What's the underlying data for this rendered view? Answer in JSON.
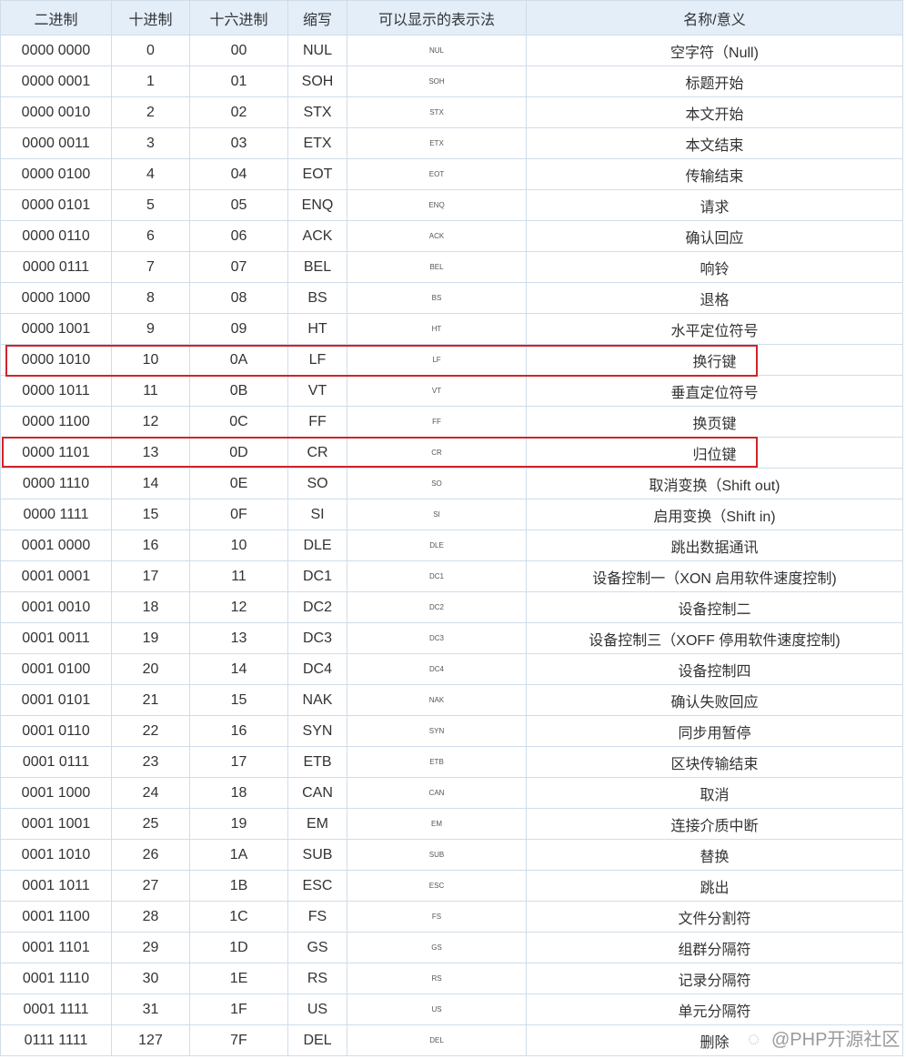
{
  "headers": [
    "二进制",
    "十进制",
    "十六进制",
    "缩写",
    "可以显示的表示法",
    "名称/意义"
  ],
  "rows": [
    [
      "0000 0000",
      "0",
      "00",
      "NUL",
      "NUL",
      "空字符（Null)"
    ],
    [
      "0000 0001",
      "1",
      "01",
      "SOH",
      "SOH",
      "标题开始"
    ],
    [
      "0000 0010",
      "2",
      "02",
      "STX",
      "STX",
      "本文开始"
    ],
    [
      "0000 0011",
      "3",
      "03",
      "ETX",
      "ETX",
      "本文结束"
    ],
    [
      "0000 0100",
      "4",
      "04",
      "EOT",
      "EOT",
      "传输结束"
    ],
    [
      "0000 0101",
      "5",
      "05",
      "ENQ",
      "ENQ",
      "请求"
    ],
    [
      "0000 0110",
      "6",
      "06",
      "ACK",
      "ACK",
      "确认回应"
    ],
    [
      "0000 0111",
      "7",
      "07",
      "BEL",
      "BEL",
      "响铃"
    ],
    [
      "0000 1000",
      "8",
      "08",
      "BS",
      "BS",
      "退格"
    ],
    [
      "0000 1001",
      "9",
      "09",
      "HT",
      "HT",
      "水平定位符号"
    ],
    [
      "0000 1010",
      "10",
      "0A",
      "LF",
      "LF",
      "换行键"
    ],
    [
      "0000 1011",
      "11",
      "0B",
      "VT",
      "VT",
      "垂直定位符号"
    ],
    [
      "0000 1100",
      "12",
      "0C",
      "FF",
      "FF",
      "换页键"
    ],
    [
      "0000 1101",
      "13",
      "0D",
      "CR",
      "CR",
      "归位键"
    ],
    [
      "0000 1110",
      "14",
      "0E",
      "SO",
      "SO",
      "取消变换（Shift out)"
    ],
    [
      "0000 1111",
      "15",
      "0F",
      "SI",
      "SI",
      "启用变换（Shift in)"
    ],
    [
      "0001 0000",
      "16",
      "10",
      "DLE",
      "DLE",
      "跳出数据通讯"
    ],
    [
      "0001 0001",
      "17",
      "11",
      "DC1",
      "DC1",
      "设备控制一（XON 启用软件速度控制)"
    ],
    [
      "0001 0010",
      "18",
      "12",
      "DC2",
      "DC2",
      "设备控制二"
    ],
    [
      "0001 0011",
      "19",
      "13",
      "DC3",
      "DC3",
      "设备控制三（XOFF 停用软件速度控制)"
    ],
    [
      "0001 0100",
      "20",
      "14",
      "DC4",
      "DC4",
      "设备控制四"
    ],
    [
      "0001 0101",
      "21",
      "15",
      "NAK",
      "NAK",
      "确认失败回应"
    ],
    [
      "0001 0110",
      "22",
      "16",
      "SYN",
      "SYN",
      "同步用暂停"
    ],
    [
      "0001 0111",
      "23",
      "17",
      "ETB",
      "ETB",
      "区块传输结束"
    ],
    [
      "0001 1000",
      "24",
      "18",
      "CAN",
      "CAN",
      "取消"
    ],
    [
      "0001 1001",
      "25",
      "19",
      "EM",
      "EM",
      "连接介质中断"
    ],
    [
      "0001 1010",
      "26",
      "1A",
      "SUB",
      "SUB",
      "替换"
    ],
    [
      "0001 1011",
      "27",
      "1B",
      "ESC",
      "ESC",
      "跳出"
    ],
    [
      "0001 1100",
      "28",
      "1C",
      "FS",
      "FS",
      "文件分割符"
    ],
    [
      "0001 1101",
      "29",
      "1D",
      "GS",
      "GS",
      "组群分隔符"
    ],
    [
      "0001 1110",
      "30",
      "1E",
      "RS",
      "RS",
      "记录分隔符"
    ],
    [
      "0001 1111",
      "31",
      "1F",
      "US",
      "US",
      "单元分隔符"
    ],
    [
      "0111 1111",
      "127",
      "7F",
      "DEL",
      "DEL",
      "删除"
    ]
  ],
  "highlighted_rows": [
    "LF",
    "CR"
  ],
  "highlight_color": "#d2232a",
  "header_bg": "#e3eef9",
  "watermark": "@PHP开源社区"
}
